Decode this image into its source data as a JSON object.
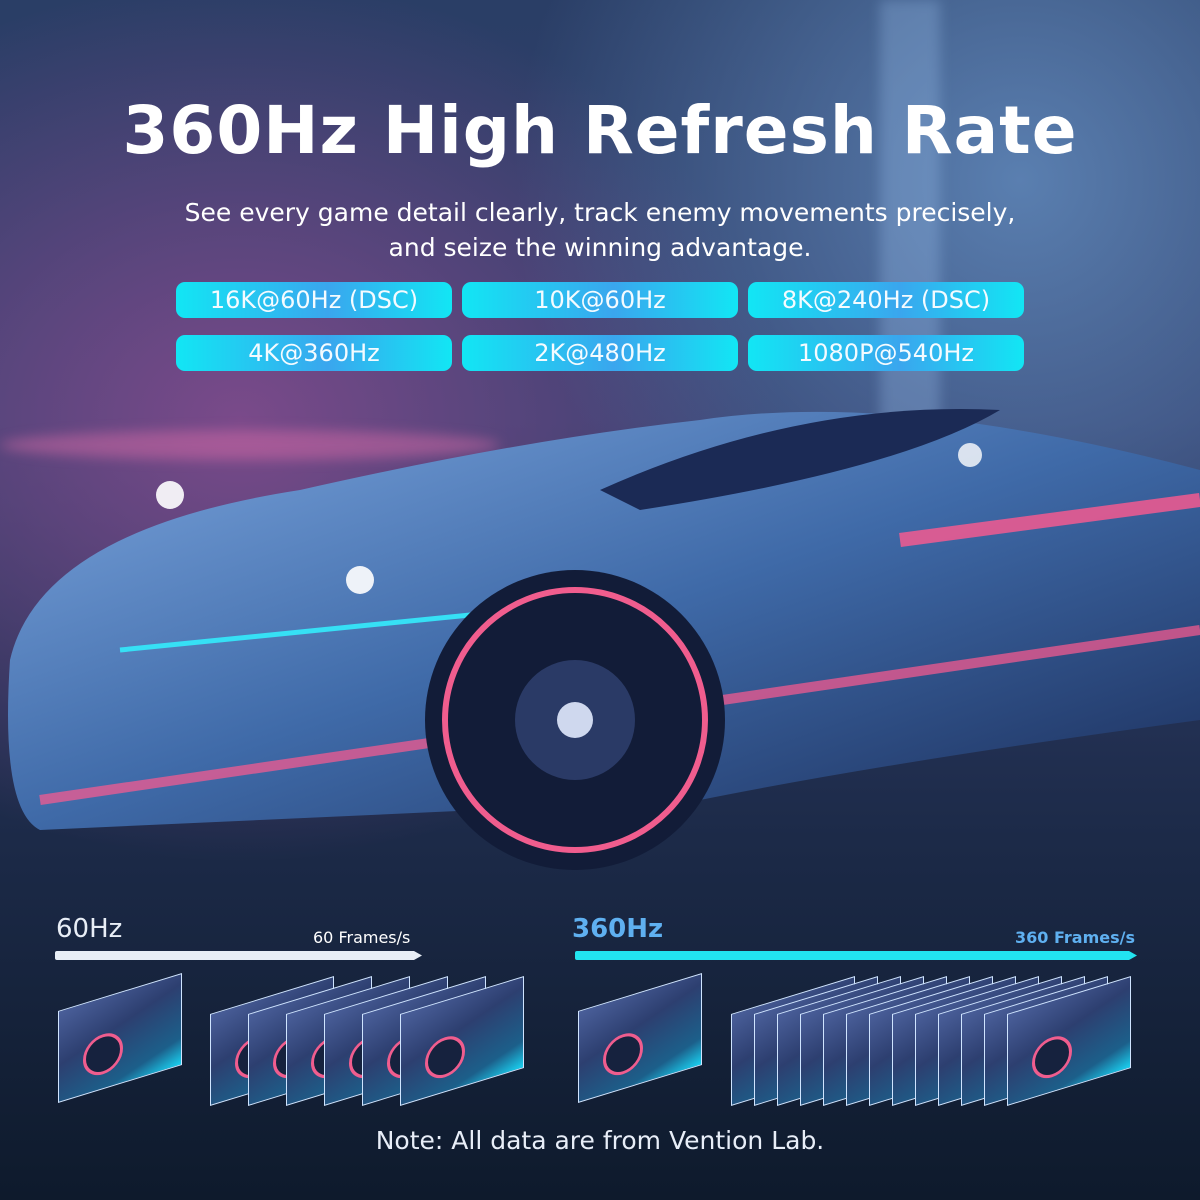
{
  "title": "360Hz High Refresh Rate",
  "subtitle": {
    "line1": "See every game detail clearly, track enemy movements precisely,",
    "line2": "and seize the winning advantage."
  },
  "specs": [
    "16K@60Hz (DSC)",
    "10K@60Hz",
    "8K@240Hz (DSC)",
    "4K@360Hz",
    "2K@480Hz",
    "1080P@540Hz"
  ],
  "comparison": {
    "left": {
      "label": "60Hz",
      "frames_label": "60 Frames/s",
      "color": "#e8eef6"
    },
    "right": {
      "label": "360Hz",
      "frames_label": "360 Frames/s",
      "color": "#22e4f0"
    }
  },
  "note": "Note: All data are from Vention Lab.",
  "colors": {
    "pill": "#12e6f4",
    "accent_pink": "#f05d8e"
  }
}
